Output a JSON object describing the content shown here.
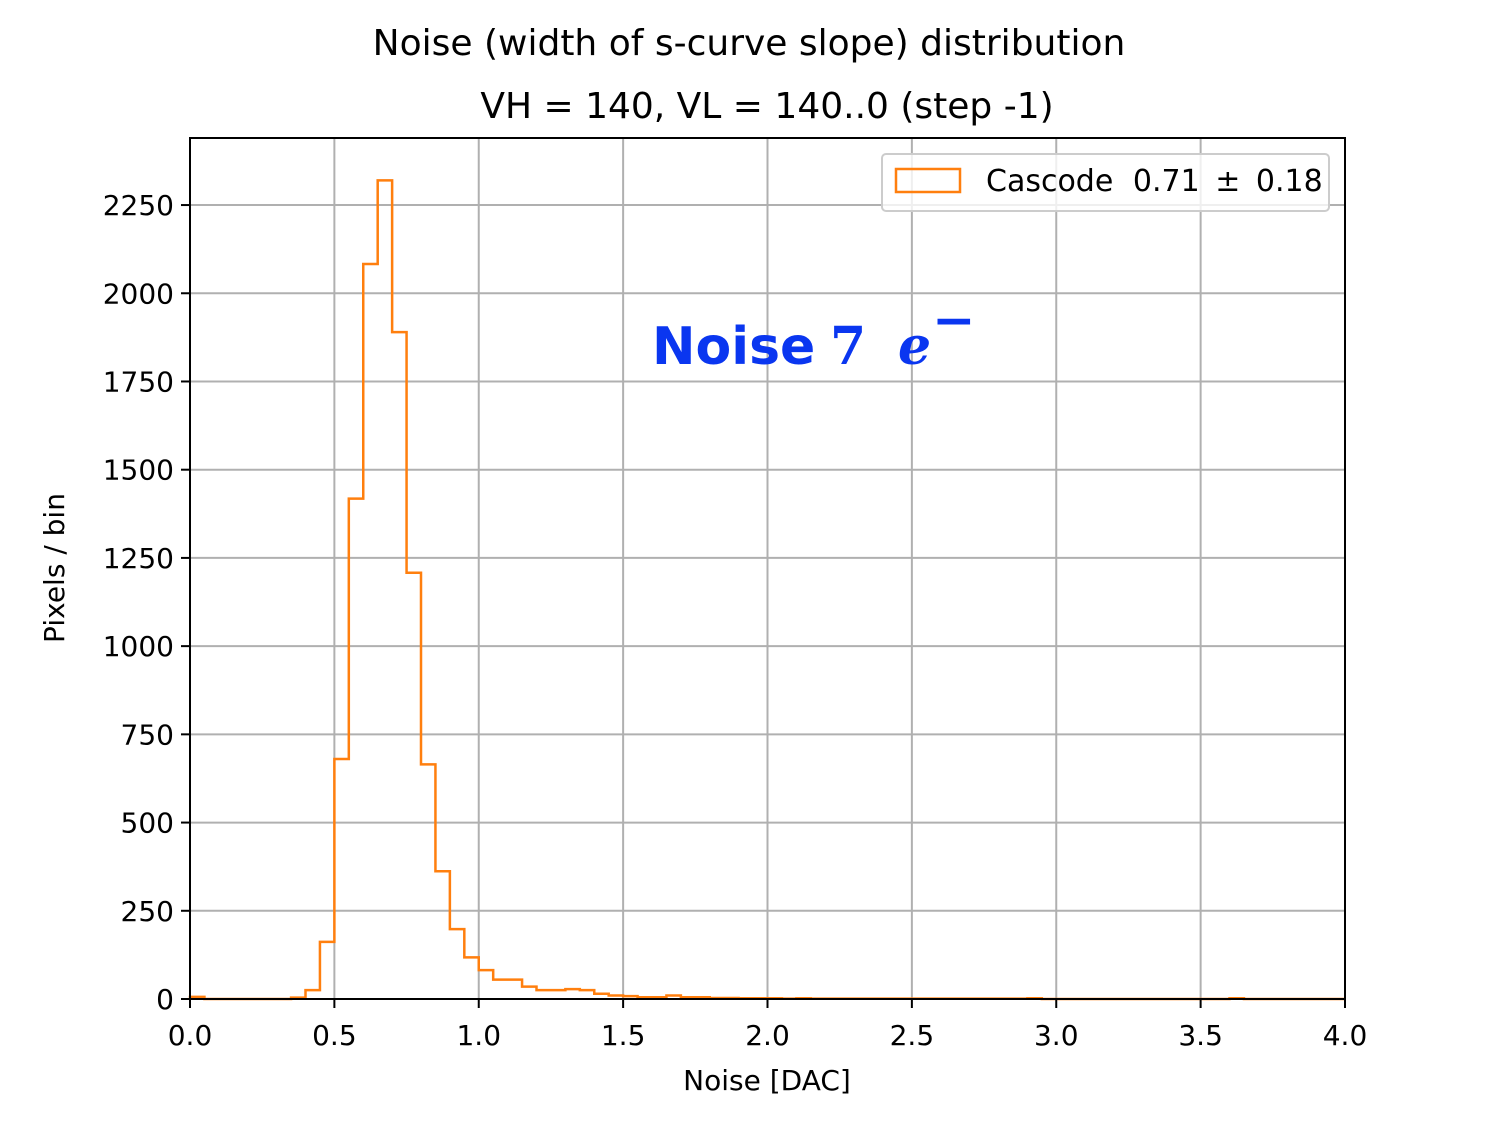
{
  "chart_data": {
    "type": "bar",
    "title": "Noise (width of s-curve slope) distribution",
    "subtitle": "VH = 140, VL = 140..0 (step -1)",
    "xlabel": "Noise [DAC]",
    "ylabel": "Pixels / bin",
    "xlim": [
      0.0,
      4.0
    ],
    "ylim": [
      0,
      2440
    ],
    "xticks": [
      "0.0",
      "0.5",
      "1.0",
      "1.5",
      "2.0",
      "2.5",
      "3.0",
      "3.5",
      "4.0"
    ],
    "yticks": [
      "0",
      "250",
      "500",
      "750",
      "1000",
      "1250",
      "1500",
      "1750",
      "2000",
      "2250"
    ],
    "grid": true,
    "legend_position": "top-right",
    "bin_width": 0.05,
    "bin_edges_start": 0.0,
    "series": [
      {
        "name": "Cascode 0.71 ± 0.18",
        "color": "#ff7f0e",
        "style": "step",
        "values": [
          6,
          0,
          0,
          0,
          0,
          0,
          0,
          4,
          25,
          162,
          680,
          1418,
          2083,
          2320,
          1890,
          1208,
          665,
          362,
          198,
          118,
          82,
          55,
          55,
          35,
          25,
          25,
          28,
          25,
          15,
          10,
          8,
          5,
          5,
          10,
          5,
          5,
          3,
          3,
          2,
          2,
          2,
          1,
          2,
          1,
          1,
          1,
          1,
          1,
          1,
          1,
          1,
          1,
          1,
          1,
          1,
          1,
          1,
          1,
          2,
          0,
          0,
          0,
          0,
          0,
          0,
          0,
          0,
          0,
          0,
          0,
          0,
          0,
          2,
          0,
          0,
          0,
          0,
          0,
          0,
          0
        ]
      }
    ]
  },
  "legend": {
    "label_prefix": "Cascode",
    "mean": "0.71",
    "pm": "±",
    "sigma": "0.18"
  },
  "annotation": {
    "word": "Noise",
    "number": "7",
    "symbol": "e",
    "superscript": "−"
  }
}
